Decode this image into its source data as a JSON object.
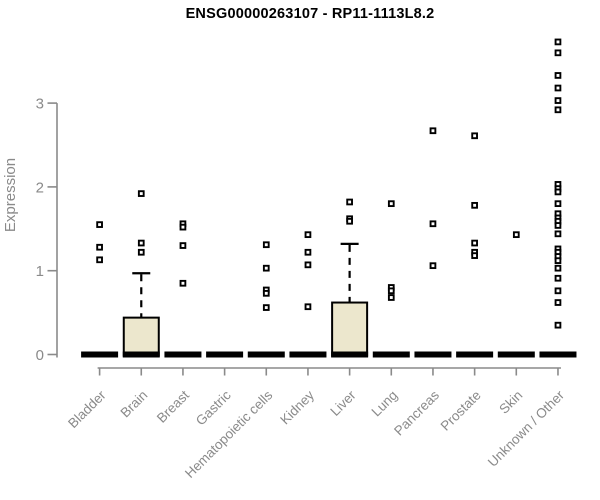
{
  "title": "ENSG00000263107 - RP11-1113L8.2",
  "chart_data": {
    "type": "boxplot",
    "title": "ENSG00000263107 - RP11-1113L8.2",
    "xlabel": "",
    "ylabel": "Expression",
    "yticks": [
      0,
      1,
      2,
      3
    ],
    "ylim": [
      0,
      3.85
    ],
    "grid": false,
    "legend_position": "none",
    "point_marker": "open-square",
    "colors": {
      "box_fill": "#ece7cd",
      "box_border": "#000000",
      "zero_bar": "#000000",
      "points": "#000000",
      "axis": "#8a8a8a",
      "title": "#000000"
    },
    "categories": [
      "Bladder",
      "Brain",
      "Breast",
      "Gastric",
      "Hematopoietic cells",
      "Kidney",
      "Liver",
      "Lung",
      "Pancreas",
      "Prostate",
      "Skin",
      "Unknown / Other"
    ],
    "boxes": [
      {
        "category": "Bladder",
        "q1": 0,
        "median": 0.02,
        "q3": 0,
        "whisker_low": 0,
        "whisker_high": 0,
        "outliers": [
          1.55,
          1.28,
          1.13
        ]
      },
      {
        "category": "Brain",
        "q1": 0,
        "median": 0.02,
        "q3": 0.44,
        "whisker_low": 0,
        "whisker_high": 0.97,
        "outliers": [
          1.92,
          1.33,
          1.22
        ]
      },
      {
        "category": "Breast",
        "q1": 0,
        "median": 0.02,
        "q3": 0,
        "whisker_low": 0,
        "whisker_high": 0,
        "outliers": [
          1.56,
          1.52,
          1.3,
          0.85
        ]
      },
      {
        "category": "Gastric",
        "q1": 0,
        "median": 0.02,
        "q3": 0,
        "whisker_low": 0,
        "whisker_high": 0,
        "outliers": []
      },
      {
        "category": "Hematopoietic cells",
        "q1": 0,
        "median": 0.02,
        "q3": 0,
        "whisker_low": 0,
        "whisker_high": 0,
        "outliers": [
          1.31,
          1.03,
          0.77,
          0.73,
          0.56
        ]
      },
      {
        "category": "Kidney",
        "q1": 0,
        "median": 0.02,
        "q3": 0,
        "whisker_low": 0,
        "whisker_high": 0,
        "outliers": [
          1.43,
          1.22,
          1.07,
          0.57
        ]
      },
      {
        "category": "Liver",
        "q1": 0,
        "median": 0.02,
        "q3": 0.62,
        "whisker_low": 0,
        "whisker_high": 1.32,
        "outliers": [
          1.82,
          1.62,
          1.59
        ]
      },
      {
        "category": "Lung",
        "q1": 0,
        "median": 0.02,
        "q3": 0,
        "whisker_low": 0,
        "whisker_high": 0,
        "outliers": [
          1.8,
          0.8,
          0.76,
          0.68
        ]
      },
      {
        "category": "Pancreas",
        "q1": 0,
        "median": 0.02,
        "q3": 0,
        "whisker_low": 0,
        "whisker_high": 0,
        "outliers": [
          2.67,
          1.56,
          1.06
        ]
      },
      {
        "category": "Prostate",
        "q1": 0,
        "median": 0.02,
        "q3": 0,
        "whisker_low": 0,
        "whisker_high": 0,
        "outliers": [
          2.61,
          1.78,
          1.33,
          1.22,
          1.18
        ]
      },
      {
        "category": "Skin",
        "q1": 0,
        "median": 0.02,
        "q3": 0,
        "whisker_low": 0,
        "whisker_high": 0,
        "outliers": [
          1.43
        ]
      },
      {
        "category": "Unknown / Other",
        "q1": 0,
        "median": 0.02,
        "q3": 0,
        "whisker_low": 0,
        "whisker_high": 0,
        "outliers": [
          3.73,
          3.6,
          3.33,
          3.18,
          3.03,
          2.92,
          2.03,
          1.98,
          1.94,
          1.8,
          1.68,
          1.63,
          1.59,
          1.54,
          1.44,
          1.26,
          1.22,
          1.17,
          1.12,
          1.03,
          0.91,
          0.76,
          0.62,
          0.35
        ]
      }
    ]
  }
}
